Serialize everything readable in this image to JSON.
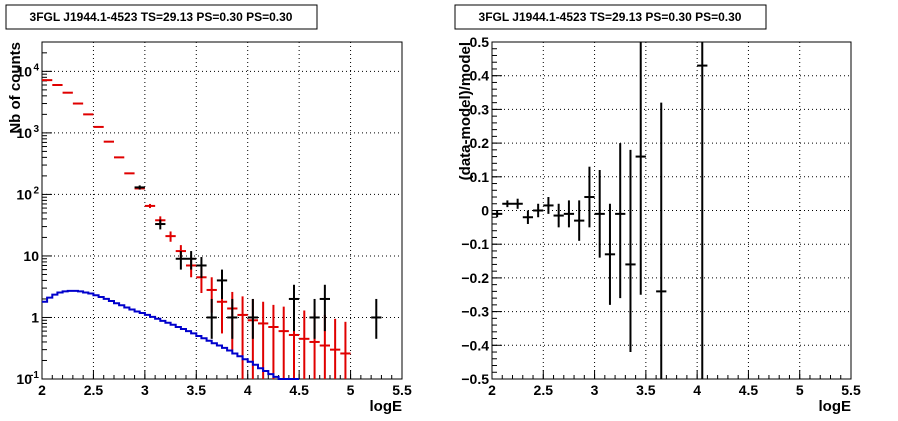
{
  "chart_data": [
    {
      "type": "histogram",
      "title": "3FGL J1944.1-4523 TS=29.13 PS=0.30 PS=0.30",
      "xlabel": "logE",
      "ylabel": "Nb of counts",
      "xlim": [
        2,
        5.5
      ],
      "ylim": [
        0.1,
        30000
      ],
      "yscale": "log",
      "grid": true,
      "x_ticks": [
        "2",
        "2.5",
        "3",
        "3.5",
        "4",
        "4.5",
        "5",
        "5.5"
      ],
      "y_ticks": [
        {
          "base": "10",
          "exp": "-1",
          "value": 0.1
        },
        {
          "base": "1",
          "exp": "",
          "value": 1
        },
        {
          "base": "10",
          "exp": "",
          "value": 10
        },
        {
          "base": "10",
          "exp": "2",
          "value": 100
        },
        {
          "base": "10",
          "exp": "3",
          "value": 1000
        },
        {
          "base": "10",
          "exp": "4",
          "value": 10000
        }
      ],
      "series": [
        {
          "color": "#e00000",
          "bin_width": 0.1,
          "points": [
            {
              "x": 2.05,
              "y": 7200,
              "lo": 7200,
              "hi": 7200
            },
            {
              "x": 2.15,
              "y": 6000,
              "lo": 6000,
              "hi": 6000
            },
            {
              "x": 2.25,
              "y": 4500,
              "lo": 4500,
              "hi": 4500
            },
            {
              "x": 2.35,
              "y": 3000,
              "lo": 3000,
              "hi": 3000
            },
            {
              "x": 2.45,
              "y": 2000,
              "lo": 2000,
              "hi": 2000
            },
            {
              "x": 2.55,
              "y": 1250,
              "lo": 1250,
              "hi": 1250
            },
            {
              "x": 2.65,
              "y": 720,
              "lo": 720,
              "hi": 720
            },
            {
              "x": 2.75,
              "y": 400,
              "lo": 400,
              "hi": 400
            },
            {
              "x": 2.85,
              "y": 220,
              "lo": 220,
              "hi": 220
            },
            {
              "x": 2.95,
              "y": 125,
              "lo": 120,
              "hi": 130
            },
            {
              "x": 3.05,
              "y": 65,
              "lo": 60,
              "hi": 70
            },
            {
              "x": 3.15,
              "y": 38,
              "lo": 33,
              "hi": 44
            },
            {
              "x": 3.25,
              "y": 21,
              "lo": 17,
              "hi": 25
            },
            {
              "x": 3.35,
              "y": 12,
              "lo": 9,
              "hi": 15
            },
            {
              "x": 3.45,
              "y": 7,
              "lo": 4.5,
              "hi": 9.5
            },
            {
              "x": 3.55,
              "y": 4.5,
              "lo": 2.5,
              "hi": 6.5
            },
            {
              "x": 3.65,
              "y": 2.8,
              "lo": 1.2,
              "hi": 4.5
            },
            {
              "x": 3.75,
              "y": 1.8,
              "lo": 0.55,
              "hi": 3.2
            },
            {
              "x": 3.85,
              "y": 1.4,
              "lo": 0.3,
              "hi": 2.6
            },
            {
              "x": 3.95,
              "y": 1.1,
              "lo": 0.1,
              "hi": 2.2
            },
            {
              "x": 4.05,
              "y": 0.9,
              "lo": 0.1,
              "hi": 2.0
            },
            {
              "x": 4.15,
              "y": 0.8,
              "lo": 0.1,
              "hi": 1.8
            },
            {
              "x": 4.25,
              "y": 0.7,
              "lo": 0.1,
              "hi": 1.6
            },
            {
              "x": 4.35,
              "y": 0.6,
              "lo": 0.1,
              "hi": 1.5
            },
            {
              "x": 4.45,
              "y": 0.52,
              "lo": 0.1,
              "hi": 1.4
            },
            {
              "x": 4.55,
              "y": 0.45,
              "lo": 0.1,
              "hi": 1.3
            },
            {
              "x": 4.65,
              "y": 0.4,
              "lo": 0.1,
              "hi": 1.2
            },
            {
              "x": 4.75,
              "y": 0.35,
              "lo": 0.1,
              "hi": 1.1
            },
            {
              "x": 4.85,
              "y": 0.3,
              "lo": 0.1,
              "hi": 0.95
            },
            {
              "x": 4.95,
              "y": 0.26,
              "lo": 0.1,
              "hi": 0.85
            }
          ]
        },
        {
          "color": "#000000",
          "bin_width": 0.1,
          "points": [
            {
              "x": 2.95,
              "y": 130,
              "lo": 120,
              "hi": 140
            },
            {
              "x": 3.15,
              "y": 33,
              "lo": 27,
              "hi": 39
            },
            {
              "x": 3.35,
              "y": 9,
              "lo": 6,
              "hi": 12
            },
            {
              "x": 3.45,
              "y": 9,
              "lo": 6,
              "hi": 12
            },
            {
              "x": 3.55,
              "y": 7,
              "lo": 4.4,
              "hi": 9.6
            },
            {
              "x": 3.65,
              "y": 1,
              "lo": 0.45,
              "hi": 2.0
            },
            {
              "x": 3.75,
              "y": 4,
              "lo": 2.0,
              "hi": 6.0
            },
            {
              "x": 3.85,
              "y": 1,
              "lo": 0.45,
              "hi": 2.0
            },
            {
              "x": 4.05,
              "y": 1,
              "lo": 0.45,
              "hi": 2.0
            },
            {
              "x": 4.45,
              "y": 2,
              "lo": 0.6,
              "hi": 3.4
            },
            {
              "x": 4.65,
              "y": 1,
              "lo": 0.45,
              "hi": 2.0
            },
            {
              "x": 4.75,
              "y": 2,
              "lo": 0.6,
              "hi": 3.4
            },
            {
              "x": 5.25,
              "y": 1,
              "lo": 0.45,
              "hi": 2.0
            }
          ]
        },
        {
          "color": "#0000cc",
          "render": "step",
          "bin_width": 0.05,
          "x_start": 2.0,
          "values": [
            1.8,
            2.1,
            2.35,
            2.55,
            2.65,
            2.7,
            2.7,
            2.65,
            2.55,
            2.45,
            2.3,
            2.15,
            2.0,
            1.85,
            1.7,
            1.58,
            1.45,
            1.35,
            1.25,
            1.18,
            1.1,
            1.02,
            0.95,
            0.88,
            0.82,
            0.76,
            0.7,
            0.65,
            0.6,
            0.55,
            0.5,
            0.46,
            0.42,
            0.38,
            0.35,
            0.32,
            0.29,
            0.26,
            0.235,
            0.21,
            0.19,
            0.17,
            0.15,
            0.135,
            0.12,
            0.108,
            0.097,
            0.087,
            0.078,
            0.07
          ]
        }
      ]
    },
    {
      "type": "scatter",
      "title": "3FGL J1944.1-4523 TS=29.13 PS=0.30 PS=0.30",
      "xlabel": "logE",
      "ylabel": "(data-model)/model",
      "xlim": [
        2,
        5.5
      ],
      "ylim": [
        -0.5,
        0.5
      ],
      "grid": true,
      "x_ticks": [
        "2",
        "2.5",
        "3",
        "3.5",
        "4",
        "4.5",
        "5",
        "5.5"
      ],
      "y_ticks": [
        "−0.5",
        "−0.4",
        "−0.3",
        "−0.2",
        "−0.1",
        "0",
        "0.1",
        "0.2",
        "0.3",
        "0.4",
        "0.5"
      ],
      "series": [
        {
          "color": "#000000",
          "bin_width": 0.1,
          "points": [
            {
              "x": 2.05,
              "y": -0.01,
              "lo": -0.02,
              "hi": 0.0
            },
            {
              "x": 2.15,
              "y": 0.02,
              "lo": 0.01,
              "hi": 0.03
            },
            {
              "x": 2.25,
              "y": 0.02,
              "lo": 0.005,
              "hi": 0.035
            },
            {
              "x": 2.35,
              "y": -0.02,
              "lo": -0.04,
              "hi": 0.0
            },
            {
              "x": 2.45,
              "y": 0.0,
              "lo": -0.02,
              "hi": 0.02
            },
            {
              "x": 2.55,
              "y": 0.015,
              "lo": -0.01,
              "hi": 0.04
            },
            {
              "x": 2.65,
              "y": -0.015,
              "lo": -0.05,
              "hi": 0.02
            },
            {
              "x": 2.75,
              "y": -0.01,
              "lo": -0.05,
              "hi": 0.03
            },
            {
              "x": 2.85,
              "y": -0.03,
              "lo": -0.09,
              "hi": 0.03
            },
            {
              "x": 2.95,
              "y": 0.04,
              "lo": -0.05,
              "hi": 0.13
            },
            {
              "x": 3.05,
              "y": -0.01,
              "lo": -0.14,
              "hi": 0.12
            },
            {
              "x": 3.15,
              "y": -0.13,
              "lo": -0.28,
              "hi": 0.02
            },
            {
              "x": 3.25,
              "y": -0.01,
              "lo": -0.26,
              "hi": 0.2
            },
            {
              "x": 3.35,
              "y": -0.16,
              "lo": -0.42,
              "hi": 0.18
            },
            {
              "x": 3.45,
              "y": 0.16,
              "lo": -0.25,
              "hi": 0.5
            },
            {
              "x": 3.65,
              "y": -0.24,
              "lo": -0.5,
              "hi": 0.32
            },
            {
              "x": 4.05,
              "y": 0.43,
              "lo": -0.5,
              "hi": 0.5
            }
          ]
        }
      ]
    }
  ]
}
